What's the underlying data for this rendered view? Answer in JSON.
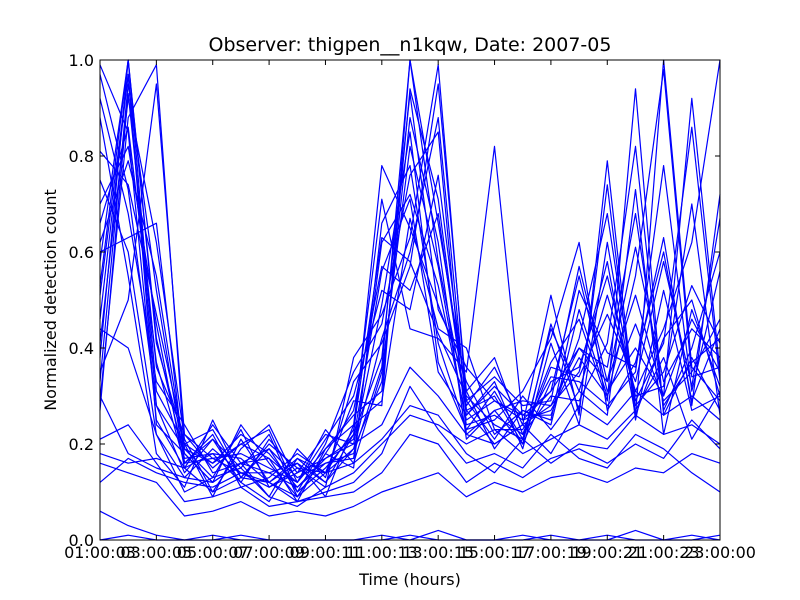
{
  "chart_data": {
    "type": "line",
    "title": "Observer: thigpen__n1kqw, Date: 2007-05",
    "xlabel": "Time (hours)",
    "ylabel": "Normalized detection count",
    "x_ticks": [
      "01:00:03",
      "03:00:05",
      "05:00:07",
      "07:00:09",
      "09:00:11",
      "11:00:13",
      "13:00:15",
      "15:00:17",
      "17:00:19",
      "19:00:21",
      "21:00:23",
      "23:00:00"
    ],
    "y_ticks": [
      "0.0",
      "0.2",
      "0.4",
      "0.6",
      "0.8",
      "1.0"
    ],
    "ylim": [
      0,
      1
    ],
    "xlim": [
      1,
      23
    ],
    "grid": false,
    "legend": false,
    "line_color": "#0000ff",
    "x": [
      1,
      2,
      3,
      4,
      5,
      6,
      7,
      8,
      9,
      10,
      11,
      12,
      13,
      14,
      15,
      16,
      17,
      18,
      19,
      20,
      21,
      22,
      23
    ],
    "series": [
      {
        "values": [
          0.46,
          0.97,
          0.24,
          0.18,
          0.12,
          0.16,
          0.19,
          0.1,
          0.15,
          0.22,
          0.38,
          0.93,
          0.48,
          0.36,
          0.29,
          0.25,
          0.31,
          0.4,
          0.33,
          0.51,
          0.3,
          0.46,
          0.35
        ]
      },
      {
        "values": [
          0.58,
          1.0,
          0.31,
          0.2,
          0.09,
          0.21,
          0.12,
          0.16,
          0.12,
          0.19,
          0.42,
          0.6,
          0.88,
          0.27,
          0.2,
          0.24,
          0.28,
          0.35,
          0.58,
          0.26,
          1.0,
          0.36,
          0.29
        ]
      },
      {
        "values": [
          0.33,
          0.95,
          0.52,
          0.16,
          0.21,
          0.15,
          0.22,
          0.09,
          0.18,
          0.15,
          0.66,
          0.78,
          0.41,
          0.23,
          0.31,
          0.21,
          0.44,
          0.31,
          0.26,
          0.73,
          0.22,
          0.48,
          0.32
        ]
      },
      {
        "values": [
          0.7,
          0.82,
          0.45,
          0.15,
          0.18,
          0.12,
          0.08,
          0.17,
          0.14,
          0.29,
          0.28,
          1.0,
          0.66,
          0.31,
          0.19,
          0.27,
          0.25,
          0.52,
          0.39,
          0.36,
          0.63,
          0.28,
          0.72
        ]
      },
      {
        "values": [
          0.97,
          0.73,
          0.28,
          0.19,
          0.13,
          0.23,
          0.11,
          0.14,
          0.17,
          0.21,
          0.56,
          0.71,
          0.35,
          0.26,
          0.33,
          0.19,
          0.41,
          0.24,
          0.62,
          0.28,
          0.35,
          0.53,
          0.41
        ]
      },
      {
        "values": [
          0.35,
          0.5,
          0.95,
          0.22,
          0.17,
          0.18,
          0.15,
          0.12,
          0.23,
          0.16,
          0.35,
          0.82,
          0.57,
          0.24,
          0.26,
          0.22,
          0.37,
          0.46,
          0.29,
          0.94,
          0.26,
          0.38,
          0.27
        ]
      },
      {
        "values": [
          0.88,
          0.55,
          0.18,
          0.11,
          0.25,
          0.13,
          0.2,
          0.15,
          0.11,
          0.38,
          0.47,
          0.63,
          0.99,
          0.29,
          0.21,
          0.3,
          0.23,
          0.31,
          0.51,
          0.31,
          0.44,
          0.62,
          1.0
        ]
      },
      {
        "values": [
          0.53,
          1.0,
          0.41,
          0.2,
          0.16,
          0.2,
          0.17,
          0.08,
          0.19,
          0.24,
          0.71,
          0.44,
          0.42,
          0.35,
          0.82,
          0.25,
          0.27,
          0.38,
          0.3,
          0.45,
          0.29,
          0.35,
          0.46
        ]
      },
      {
        "values": [
          0.66,
          0.86,
          0.37,
          0.16,
          0.22,
          0.11,
          0.13,
          0.18,
          0.14,
          0.19,
          0.33,
          0.88,
          0.62,
          0.21,
          0.27,
          0.2,
          0.45,
          0.27,
          0.74,
          0.25,
          0.52,
          0.27,
          0.3
        ]
      },
      {
        "values": [
          0.41,
          0.92,
          0.62,
          0.21,
          0.1,
          0.19,
          0.24,
          0.12,
          0.21,
          0.3,
          0.52,
          0.48,
          0.76,
          0.29,
          0.34,
          0.28,
          0.29,
          0.57,
          0.33,
          0.61,
          0.33,
          0.44,
          0.38
        ]
      },
      {
        "values": [
          0.75,
          0.6,
          0.22,
          0.13,
          0.19,
          0.14,
          0.14,
          0.16,
          0.09,
          0.24,
          0.29,
          0.67,
          0.44,
          0.4,
          0.23,
          0.23,
          0.34,
          0.33,
          0.28,
          0.35,
          0.78,
          0.31,
          0.56
        ]
      },
      {
        "values": [
          0.29,
          0.88,
          0.99,
          0.19,
          0.16,
          0.22,
          0.18,
          0.11,
          0.16,
          0.17,
          0.62,
          0.72,
          0.53,
          0.25,
          0.29,
          0.26,
          0.26,
          0.42,
          0.68,
          0.29,
          0.41,
          0.86,
          0.33
        ]
      },
      {
        "values": [
          0.92,
          0.68,
          0.33,
          0.24,
          0.14,
          0.16,
          0.09,
          0.19,
          0.13,
          0.33,
          0.41,
          0.57,
          0.95,
          0.31,
          0.38,
          0.22,
          0.3,
          0.29,
          0.41,
          0.82,
          0.27,
          0.4,
          0.6
        ]
      },
      {
        "values": [
          0.51,
          0.97,
          0.28,
          0.14,
          0.21,
          0.12,
          0.21,
          0.14,
          0.22,
          0.2,
          0.49,
          0.85,
          0.37,
          0.23,
          0.25,
          0.31,
          0.42,
          0.62,
          0.27,
          0.37,
          0.6,
          0.29,
          0.44
        ]
      },
      {
        "values": [
          0.62,
          0.79,
          0.55,
          0.18,
          0.12,
          0.24,
          0.16,
          0.09,
          0.18,
          0.27,
          0.57,
          0.52,
          0.68,
          0.27,
          0.3,
          0.2,
          0.33,
          0.36,
          0.55,
          0.3,
          0.32,
          0.7,
          0.26
        ]
      },
      {
        "values": [
          0.38,
          1.0,
          0.42,
          0.17,
          0.18,
          0.17,
          0.12,
          0.17,
          0.12,
          0.22,
          0.78,
          0.65,
          0.49,
          0.33,
          0.22,
          0.27,
          0.24,
          0.48,
          0.3,
          0.55,
          0.98,
          0.34,
          0.36
        ]
      },
      {
        "values": [
          0.81,
          0.74,
          0.47,
          0.2,
          0.23,
          0.13,
          0.19,
          0.13,
          0.16,
          0.18,
          0.36,
          1.0,
          0.58,
          0.28,
          0.36,
          0.24,
          0.51,
          0.26,
          0.79,
          0.26,
          0.42,
          0.5,
          0.3
        ]
      },
      {
        "values": [
          0.27,
          0.93,
          0.36,
          0.22,
          0.15,
          0.2,
          0.23,
          0.1,
          0.2,
          0.35,
          0.45,
          0.76,
          0.85,
          0.22,
          0.27,
          0.29,
          0.28,
          0.4,
          0.36,
          0.68,
          0.28,
          0.37,
          0.42
        ]
      },
      {
        "values": [
          0.6,
          0.63,
          0.66,
          0.16,
          0.17,
          0.14,
          0.11,
          0.15,
          0.14,
          0.23,
          0.63,
          0.58,
          0.43,
          0.3,
          0.24,
          0.21,
          0.36,
          0.34,
          0.47,
          0.33,
          0.58,
          0.32,
          0.67
        ]
      },
      {
        "values": [
          0.99,
          0.85,
          0.25,
          0.15,
          0.24,
          0.16,
          0.17,
          0.12,
          0.19,
          0.26,
          0.31,
          0.94,
          0.71,
          0.26,
          0.32,
          0.26,
          0.31,
          0.55,
          0.31,
          0.4,
          0.3,
          0.92,
          0.35
        ]
      },
      {
        "values": [
          0.3,
          0.18,
          0.15,
          0.13,
          0.12,
          0.16,
          0.14,
          0.11,
          0.17,
          0.2,
          0.24,
          0.36,
          0.3,
          0.22,
          0.2,
          0.24,
          0.18,
          0.28,
          0.24,
          0.31,
          0.26,
          0.3,
          0.25
        ]
      },
      {
        "values": [
          0.18,
          0.16,
          0.17,
          0.15,
          0.1,
          0.13,
          0.12,
          0.09,
          0.14,
          0.16,
          0.21,
          0.28,
          0.26,
          0.18,
          0.14,
          0.21,
          0.16,
          0.2,
          0.19,
          0.26,
          0.22,
          0.24,
          0.2
        ]
      },
      {
        "values": [
          0.12,
          0.17,
          0.14,
          0.12,
          0.11,
          0.14,
          0.12,
          0.08,
          0.1,
          0.12,
          0.18,
          0.32,
          0.23,
          0.16,
          0.18,
          0.15,
          0.22,
          0.17,
          0.15,
          0.22,
          0.19,
          0.14,
          0.1
        ]
      },
      {
        "values": [
          0.06,
          0.03,
          0.01,
          0.0,
          0.01,
          0.0,
          0.0,
          0.0,
          0.0,
          0.0,
          0.01,
          0.0,
          0.02,
          0.0,
          0.0,
          0.01,
          0.0,
          0.0,
          0.01,
          0.0,
          0.0,
          0.01,
          0.0
        ]
      },
      {
        "values": [
          0.0,
          0.01,
          0.0,
          0.0,
          0.0,
          0.01,
          0.0,
          0.0,
          0.0,
          0.0,
          0.0,
          0.01,
          0.0,
          0.0,
          0.0,
          0.0,
          0.01,
          0.0,
          0.0,
          0.02,
          0.0,
          0.0,
          0.01
        ]
      },
      {
        "values": [
          0.16,
          0.14,
          0.12,
          0.05,
          0.06,
          0.08,
          0.05,
          0.06,
          0.05,
          0.07,
          0.1,
          0.12,
          0.14,
          0.09,
          0.12,
          0.1,
          0.13,
          0.14,
          0.12,
          0.15,
          0.14,
          0.18,
          0.16
        ]
      },
      {
        "values": [
          0.21,
          0.24,
          0.16,
          0.08,
          0.09,
          0.11,
          0.07,
          0.08,
          0.09,
          0.1,
          0.14,
          0.22,
          0.2,
          0.12,
          0.16,
          0.13,
          0.17,
          0.19,
          0.16,
          0.2,
          0.17,
          0.25,
          0.19
        ]
      },
      {
        "values": [
          0.44,
          0.4,
          0.22,
          0.1,
          0.13,
          0.15,
          0.09,
          0.07,
          0.11,
          0.14,
          0.2,
          0.26,
          0.24,
          0.2,
          0.23,
          0.18,
          0.21,
          0.24,
          0.21,
          0.27,
          0.38,
          0.21,
          0.31
        ]
      }
    ]
  }
}
